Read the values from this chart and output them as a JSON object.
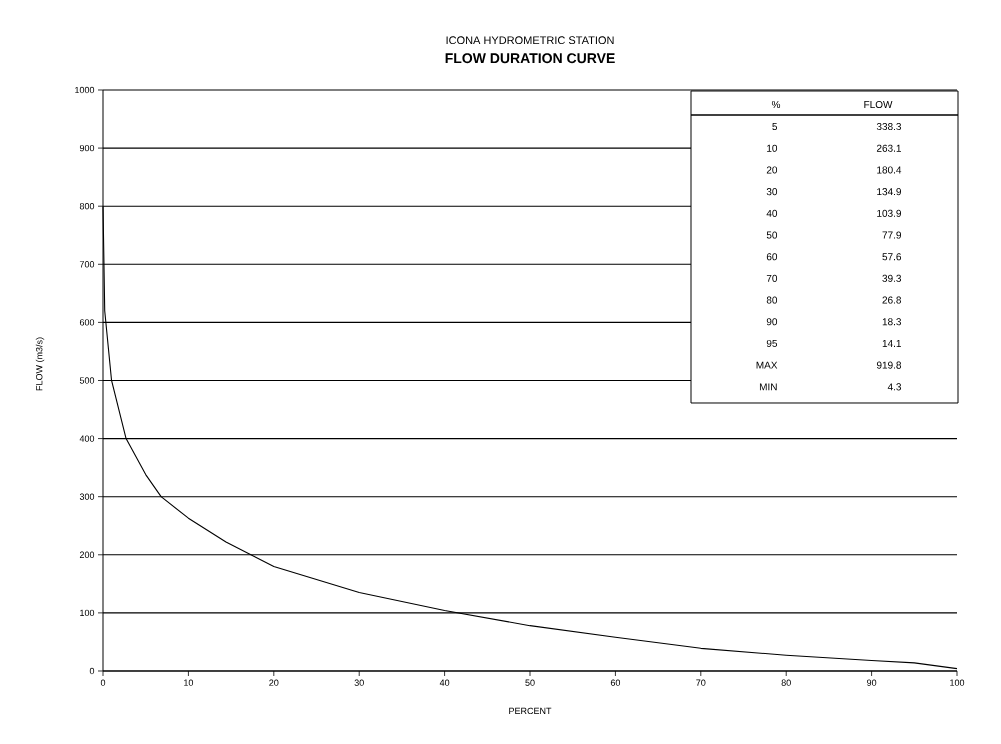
{
  "chart_data": {
    "type": "line",
    "title": "ICONA HYDROMETRIC STATION",
    "subtitle": "FLOW DURATION CURVE",
    "xlabel": "PERCENT",
    "ylabel": "FLOW (m3/s)",
    "x": [
      0,
      0.2,
      1,
      2.7,
      5,
      6.8,
      10,
      14.4,
      17.6,
      20,
      30,
      40,
      50,
      60,
      70,
      80,
      90,
      95,
      100
    ],
    "values": [
      800,
      620,
      500,
      400,
      338,
      300,
      263,
      222,
      198,
      180,
      135,
      104,
      78,
      58,
      39,
      27,
      18,
      14,
      4
    ],
    "color": "#000000",
    "marker": "none",
    "line_style": "solid",
    "xlim": [
      0,
      100
    ],
    "ylim": [
      0,
      1000
    ],
    "xticks": [
      0,
      10,
      20,
      30,
      40,
      50,
      60,
      70,
      80,
      90,
      100
    ],
    "yticks": [
      0,
      100,
      200,
      300,
      400,
      500,
      600,
      700,
      800,
      900,
      1000
    ],
    "grid": "y",
    "annotations": [
      "%",
      "FLOW",
      "5",
      "338.3",
      "10",
      "263.1",
      "20",
      "180.4",
      "30",
      "134.9",
      "40",
      "103.9",
      "50",
      "77.9",
      "60",
      "57.6",
      "70",
      "39.3",
      "80",
      "26.8",
      "90",
      "18.3",
      "95",
      "14.1",
      "MAX",
      "919.8",
      "MIN",
      "4.3"
    ]
  }
}
